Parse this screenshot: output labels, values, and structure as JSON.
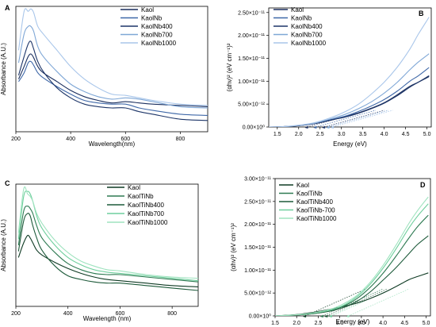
{
  "chart_data": [
    {
      "panel": "A",
      "type": "line",
      "xlabel": "Wavelength(nm)",
      "ylabel": "Absorbance (A.U.)",
      "xlim": [
        200,
        900
      ],
      "xticks": [
        "200",
        "400",
        "600",
        "800"
      ],
      "ylim": [
        0,
        1
      ],
      "yticks_shown": false,
      "legend_position": "top-right",
      "series": [
        {
          "name": "Kaol",
          "color": "#1b2f5e",
          "x": [
            210,
            230,
            245,
            255,
            265,
            280,
            300,
            350,
            400,
            450,
            500,
            550,
            600,
            650,
            700,
            800,
            900
          ],
          "y": [
            0.42,
            0.52,
            0.6,
            0.62,
            0.59,
            0.52,
            0.47,
            0.4,
            0.33,
            0.28,
            0.25,
            0.23,
            0.24,
            0.23,
            0.22,
            0.21,
            0.2
          ]
        },
        {
          "name": "KaolNb",
          "color": "#3f68a8",
          "x": [
            210,
            230,
            245,
            255,
            265,
            280,
            300,
            350,
            400,
            450,
            500,
            550,
            600,
            650,
            700,
            800,
            900
          ],
          "y": [
            0.4,
            0.47,
            0.55,
            0.56,
            0.53,
            0.47,
            0.43,
            0.36,
            0.3,
            0.25,
            0.23,
            0.22,
            0.22,
            0.19,
            0.17,
            0.14,
            0.13
          ]
        },
        {
          "name": "KaolNb400",
          "color": "#1d3568",
          "x": [
            210,
            230,
            245,
            255,
            265,
            280,
            300,
            350,
            400,
            450,
            500,
            550,
            600,
            650,
            700,
            800,
            900
          ],
          "y": [
            0.45,
            0.6,
            0.7,
            0.72,
            0.66,
            0.56,
            0.48,
            0.35,
            0.27,
            0.22,
            0.2,
            0.19,
            0.19,
            0.16,
            0.14,
            0.1,
            0.09
          ]
        },
        {
          "name": "KaolNb700",
          "color": "#7fa7d6",
          "x": [
            210,
            230,
            245,
            255,
            265,
            280,
            300,
            350,
            400,
            450,
            500,
            550,
            600,
            650,
            700,
            800,
            900
          ],
          "y": [
            0.55,
            0.78,
            0.84,
            0.84,
            0.8,
            0.68,
            0.6,
            0.48,
            0.38,
            0.32,
            0.28,
            0.26,
            0.27,
            0.26,
            0.24,
            0.2,
            0.19
          ]
        },
        {
          "name": "KaolNb1000",
          "color": "#a9c6ea",
          "x": [
            210,
            230,
            245,
            255,
            265,
            280,
            300,
            350,
            400,
            450,
            500,
            550,
            600,
            650,
            700,
            800,
            900
          ],
          "y": [
            0.65,
            0.96,
            0.96,
            0.98,
            0.95,
            0.84,
            0.78,
            0.65,
            0.52,
            0.42,
            0.35,
            0.3,
            0.29,
            0.27,
            0.25,
            0.22,
            0.21
          ]
        }
      ]
    },
    {
      "panel": "B",
      "type": "line",
      "xlabel": "Energy (eV)",
      "ylabel": "(αhν)² (eV cm⁻¹)²",
      "xlim": [
        1.3,
        5.1
      ],
      "xticks": [
        "1.5",
        "2.0",
        "2.5",
        "3.0",
        "3.5",
        "4.0",
        "4.5",
        "5.0"
      ],
      "ylim": [
        0,
        2.6e-11
      ],
      "yticks": [
        "0.00×10⁰",
        "5.00×10⁻¹²",
        "1.00×10⁻¹¹",
        "1.50×10⁻¹¹",
        "2.00×10⁻¹¹",
        "2.50×10⁻¹¹"
      ],
      "legend_position": "top-left",
      "series": [
        {
          "name": "Kaol",
          "color": "#1b2f5e",
          "x": [
            1.3,
            1.6,
            2.0,
            2.4,
            2.8,
            3.1,
            3.4,
            3.7,
            4.0,
            4.3,
            4.6,
            4.8,
            5.05
          ],
          "y": [
            0,
            5e-14,
            3e-13,
            8e-13,
            1.6e-12,
            2.3e-12,
            3.1e-12,
            4.1e-12,
            5.3e-12,
            7e-12,
            8.9e-12,
            9.8e-12,
            1.1e-11
          ]
        },
        {
          "name": "KaolNb",
          "color": "#3f68a8",
          "x": [
            1.3,
            1.6,
            2.0,
            2.4,
            2.8,
            3.1,
            3.4,
            3.7,
            4.0,
            4.3,
            4.6,
            4.8,
            5.05
          ],
          "y": [
            0,
            5e-14,
            3e-13,
            8e-13,
            1.7e-12,
            2.4e-12,
            3.4e-12,
            4.6e-12,
            6e-12,
            7.8e-12,
            1e-11,
            1.12e-11,
            1.3e-11
          ]
        },
        {
          "name": "KaolNb400",
          "color": "#1d3568",
          "x": [
            1.3,
            1.6,
            2.0,
            2.4,
            2.8,
            3.1,
            3.4,
            3.7,
            4.0,
            4.3,
            4.6,
            4.8,
            5.05
          ],
          "y": [
            0,
            5e-14,
            3e-13,
            8e-13,
            1.6e-12,
            2.2e-12,
            3e-12,
            4e-12,
            5.2e-12,
            6.8e-12,
            8.7e-12,
            9.8e-12,
            1.12e-11
          ]
        },
        {
          "name": "KaolNb700",
          "color": "#7fa7d6",
          "x": [
            1.3,
            1.6,
            2.0,
            2.4,
            2.8,
            3.1,
            3.4,
            3.7,
            4.0,
            4.3,
            4.6,
            4.8,
            5.05
          ],
          "y": [
            0,
            5e-14,
            3.5e-13,
            9e-13,
            1.9e-12,
            2.8e-12,
            4e-12,
            5.5e-12,
            7.4e-12,
            9.7e-12,
            1.25e-11,
            1.42e-11,
            1.6e-11
          ]
        },
        {
          "name": "KaolNb1000",
          "color": "#a9c6ea",
          "x": [
            1.3,
            1.6,
            2.0,
            2.4,
            2.8,
            3.1,
            3.4,
            3.7,
            4.0,
            4.3,
            4.6,
            4.8,
            5.05
          ],
          "y": [
            0,
            5e-14,
            4e-13,
            1e-12,
            2.2e-12,
            3.4e-12,
            5e-12,
            7.2e-12,
            9.8e-12,
            1.3e-11,
            1.7e-11,
            2.03e-11,
            2.4e-11
          ]
        }
      ],
      "tangent_intercepts_eV": [
        2.2,
        2.4,
        2.6,
        2.7,
        2.8
      ]
    },
    {
      "panel": "C",
      "type": "line",
      "xlabel": "Wavelength (nm)",
      "ylabel": "Absorbance (A.U.)",
      "xlim": [
        200,
        900
      ],
      "xticks": [
        "200",
        "400",
        "600",
        "800"
      ],
      "ylim": [
        0,
        1
      ],
      "yticks_shown": false,
      "legend_position": "top-right",
      "series": [
        {
          "name": "Kaol",
          "color": "#0f3b24",
          "x": [
            210,
            230,
            245,
            255,
            265,
            280,
            300,
            350,
            400,
            450,
            500,
            550,
            600,
            700,
            800,
            900
          ],
          "y": [
            0.4,
            0.52,
            0.58,
            0.56,
            0.52,
            0.46,
            0.42,
            0.36,
            0.31,
            0.27,
            0.24,
            0.22,
            0.21,
            0.19,
            0.17,
            0.16
          ]
        },
        {
          "name": "KaolTiNb",
          "color": "#2e7a52",
          "x": [
            210,
            230,
            245,
            255,
            265,
            280,
            300,
            350,
            400,
            450,
            500,
            550,
            600,
            700,
            800,
            900
          ],
          "y": [
            0.5,
            0.78,
            0.82,
            0.8,
            0.76,
            0.66,
            0.56,
            0.44,
            0.35,
            0.3,
            0.27,
            0.26,
            0.26,
            0.24,
            0.22,
            0.2
          ]
        },
        {
          "name": "KaolTiNb400",
          "color": "#1d5a3a",
          "x": [
            210,
            230,
            245,
            255,
            265,
            280,
            300,
            350,
            400,
            450,
            500,
            550,
            600,
            700,
            800,
            900
          ],
          "y": [
            0.45,
            0.7,
            0.76,
            0.74,
            0.66,
            0.56,
            0.46,
            0.33,
            0.25,
            0.22,
            0.2,
            0.19,
            0.19,
            0.17,
            0.15,
            0.13
          ]
        },
        {
          "name": "KaolTiNb700",
          "color": "#6fcf9d",
          "x": [
            210,
            230,
            245,
            255,
            265,
            280,
            300,
            350,
            400,
            450,
            500,
            550,
            600,
            700,
            800,
            900
          ],
          "y": [
            0.55,
            0.9,
            0.94,
            0.92,
            0.86,
            0.74,
            0.64,
            0.5,
            0.4,
            0.34,
            0.3,
            0.28,
            0.27,
            0.25,
            0.23,
            0.21
          ]
        },
        {
          "name": "KaolTiNb1000",
          "color": "#9fe3bf",
          "x": [
            210,
            230,
            245,
            255,
            265,
            280,
            300,
            350,
            400,
            450,
            500,
            550,
            600,
            700,
            800,
            900
          ],
          "y": [
            0.6,
            0.96,
            0.92,
            0.9,
            0.86,
            0.76,
            0.68,
            0.54,
            0.44,
            0.37,
            0.33,
            0.3,
            0.29,
            0.26,
            0.24,
            0.23
          ]
        }
      ]
    },
    {
      "panel": "D",
      "type": "line",
      "xlabel": "Energy (eV)",
      "ylabel": "(αhν)² (eV cm⁻¹)²",
      "xlim": [
        1.5,
        5.1
      ],
      "xticks": [
        "1.5",
        "2.0",
        "2.5",
        "3.0",
        "3.5",
        "4.0",
        "4.5",
        "5.0"
      ],
      "ylim": [
        0,
        3e-11
      ],
      "yticks": [
        "0.00×10⁰",
        "5.00×10⁻¹²",
        "1.00×10⁻¹¹",
        "1.50×10⁻¹¹",
        "2.00×10⁻¹¹",
        "2.50×10⁻¹¹",
        "3.00×10⁻¹¹"
      ],
      "legend_position": "top-left",
      "series": [
        {
          "name": "Kaol",
          "color": "#0f3b24",
          "x": [
            1.5,
            2.0,
            2.4,
            2.8,
            3.1,
            3.4,
            3.7,
            4.0,
            4.3,
            4.6,
            4.8,
            5.05
          ],
          "y": [
            0,
            3e-13,
            8e-13,
            1.5e-12,
            2.1e-12,
            2.8e-12,
            3.8e-12,
            5e-12,
            6.4e-12,
            7.9e-12,
            8.6e-12,
            9.4e-12
          ]
        },
        {
          "name": "KaolTiNb",
          "color": "#2e7a52",
          "x": [
            1.5,
            2.0,
            2.4,
            2.8,
            3.1,
            3.4,
            3.7,
            4.0,
            4.3,
            4.6,
            4.8,
            5.05
          ],
          "y": [
            0,
            2e-13,
            5e-13,
            1.2e-12,
            2.2e-12,
            3.8e-12,
            6.2e-12,
            9.3e-12,
            1.3e-11,
            1.7e-11,
            1.95e-11,
            2.2e-11
          ]
        },
        {
          "name": "KaolTiNb400",
          "color": "#1d5a3a",
          "x": [
            1.5,
            2.0,
            2.4,
            2.8,
            3.1,
            3.4,
            3.7,
            4.0,
            4.3,
            4.6,
            4.8,
            5.05
          ],
          "y": [
            0,
            2e-13,
            5e-13,
            1.1e-12,
            1.9e-12,
            3.2e-12,
            5.2e-12,
            7.8e-12,
            1.05e-11,
            1.36e-11,
            1.56e-11,
            1.75e-11
          ]
        },
        {
          "name": "KaolTiNb-700",
          "color": "#6fcf9d",
          "x": [
            1.5,
            2.0,
            2.4,
            2.8,
            3.1,
            3.4,
            3.7,
            4.0,
            4.3,
            4.6,
            4.8,
            5.05
          ],
          "y": [
            0,
            2e-13,
            6e-13,
            1.3e-12,
            2.4e-12,
            4.2e-12,
            6.9e-12,
            1.04e-11,
            1.46e-11,
            1.92e-11,
            2.18e-11,
            2.45e-11
          ]
        },
        {
          "name": "KaolTiNb1000",
          "color": "#9fe3bf",
          "x": [
            1.5,
            2.0,
            2.4,
            2.8,
            3.1,
            3.4,
            3.7,
            4.0,
            4.3,
            4.6,
            4.8,
            5.05
          ],
          "y": [
            0,
            2.5e-13,
            7e-13,
            1.5e-12,
            2.7e-12,
            4.5e-12,
            7.3e-12,
            1.1e-11,
            1.54e-11,
            2.02e-11,
            2.3e-11,
            2.6e-11
          ]
        }
      ],
      "tangent_intercepts_eV": [
        2.2,
        2.6,
        2.7,
        2.8,
        3.2
      ]
    }
  ]
}
